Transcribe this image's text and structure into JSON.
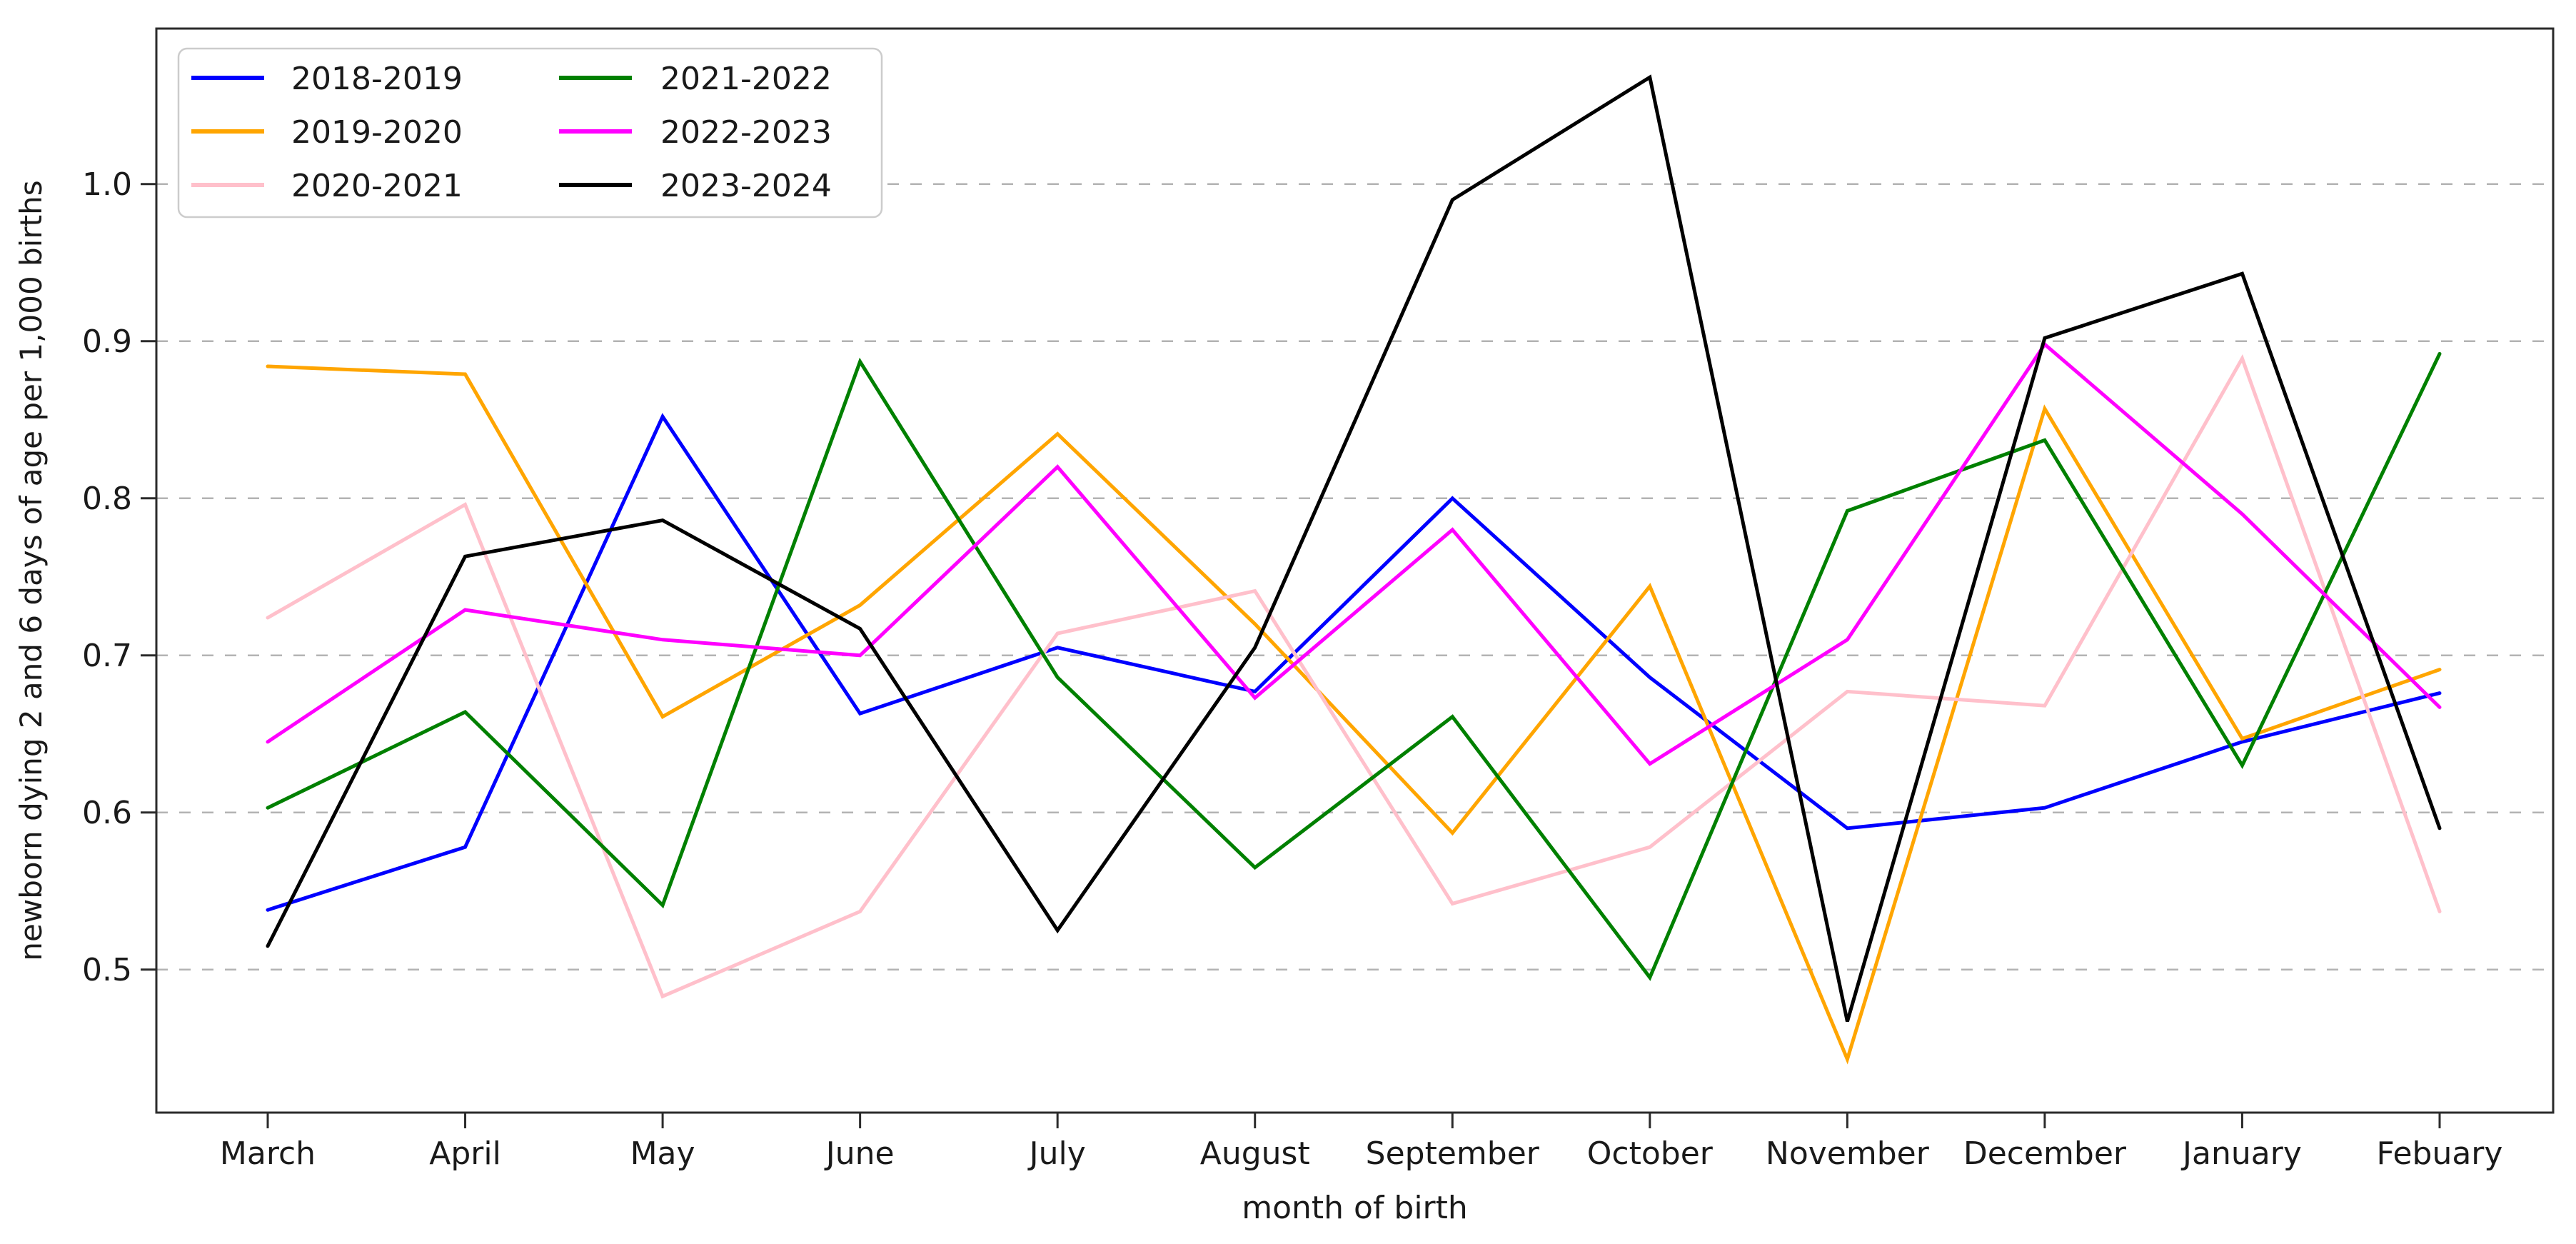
{
  "figure": {
    "background": "#ffffff"
  },
  "chart_data": {
    "type": "line",
    "title": "",
    "xlabel": "month of birth",
    "ylabel": "newborn dying 2 and 6 days of age per 1,000 births",
    "categories": [
      "March",
      "April",
      "May",
      "June",
      "July",
      "August",
      "September",
      "October",
      "November",
      "December",
      "January",
      "Febuary"
    ],
    "series": [
      {
        "name": "2018-2019",
        "color": "#0000ff",
        "values": [
          0.538,
          0.578,
          0.852,
          0.663,
          0.705,
          0.677,
          0.8,
          0.686,
          0.59,
          0.603,
          0.645,
          0.676
        ]
      },
      {
        "name": "2019-2020",
        "color": "#ffa500",
        "values": [
          0.884,
          0.879,
          0.661,
          0.732,
          0.841,
          0.72,
          0.587,
          0.744,
          0.443,
          0.857,
          0.647,
          0.691
        ]
      },
      {
        "name": "2020-2021",
        "color": "#ffc0cb",
        "values": [
          0.724,
          0.796,
          0.483,
          0.537,
          0.714,
          0.741,
          0.542,
          0.578,
          0.677,
          0.668,
          0.889,
          0.537
        ]
      },
      {
        "name": "2021-2022",
        "color": "#008000",
        "values": [
          0.603,
          0.664,
          0.541,
          0.887,
          0.686,
          0.565,
          0.661,
          0.495,
          0.792,
          0.837,
          0.63,
          0.892
        ]
      },
      {
        "name": "2022-2023",
        "color": "#ff00ff",
        "values": [
          0.645,
          0.729,
          0.71,
          0.7,
          0.82,
          0.673,
          0.78,
          0.631,
          0.71,
          0.898,
          0.79,
          0.667
        ]
      },
      {
        "name": "2023-2024",
        "color": "#000000",
        "values": [
          0.515,
          0.763,
          0.786,
          0.717,
          0.525,
          0.705,
          0.99,
          1.068,
          0.467,
          0.902,
          0.943,
          0.59
        ]
      }
    ],
    "yticks": [
      0.5,
      0.6,
      0.7,
      0.8,
      0.9,
      1.0
    ],
    "ytick_labels": [
      "0.5",
      "0.6",
      "0.7",
      "0.8",
      "0.9",
      "1.0"
    ],
    "ylim": [
      0.409,
      1.099
    ],
    "grid": "horizontal-dashed",
    "legend_position": "upper-left",
    "legend_columns": 2,
    "legend_column_order": [
      [
        "2018-2019",
        "2019-2020",
        "2020-2021"
      ],
      [
        "2021-2022",
        "2022-2023",
        "2023-2024"
      ]
    ]
  },
  "colors": {
    "grid": "#b3b3b3",
    "spine": "#2b2b2b",
    "text": "#1a1a1a",
    "legend_border": "#cccccc",
    "background": "#ffffff"
  }
}
